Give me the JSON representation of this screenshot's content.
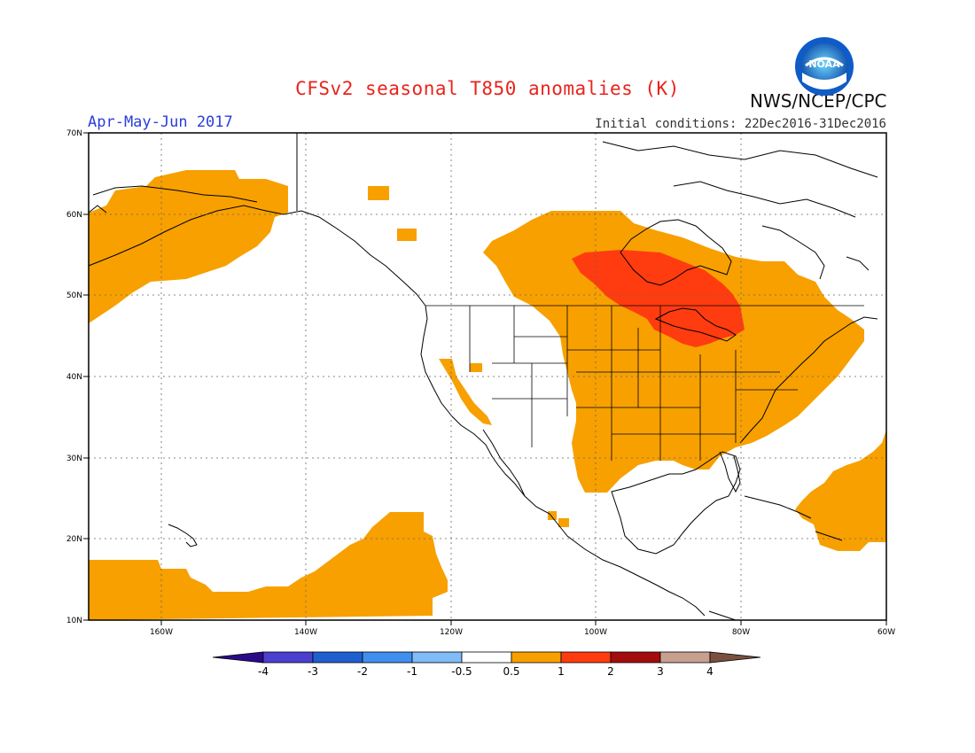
{
  "title": "CFSv2 seasonal T850 anomalies (K)",
  "season": "Apr-May-Jun 2017",
  "initial_conditions": "Initial conditions: 22Dec2016-31Dec2016",
  "agency": "NWS/NCEP/CPC",
  "logo_text": "NOAA",
  "map": {
    "lat_ticks": [
      "10N",
      "20N",
      "30N",
      "40N",
      "50N",
      "60N",
      "70N"
    ],
    "lon_ticks": [
      "160W",
      "140W",
      "120W",
      "100W",
      "80W",
      "60W"
    ],
    "lat_range": [
      10,
      70
    ],
    "lon_range": [
      -170,
      -60
    ],
    "gridlines": true,
    "anomaly_regions": [
      {
        "region": "Alaska / Bering Sea",
        "category": "0.5 to 1"
      },
      {
        "region": "Central and Eastern United States and Canada",
        "category": "0.5 to 1"
      },
      {
        "region": "Great Lakes / Hudson Bay area",
        "category": "1 to 2"
      },
      {
        "region": "Subtropical eastern Pacific",
        "category": "0.5 to 1"
      },
      {
        "region": "Western Atlantic / Caribbean",
        "category": "0.5 to 1"
      }
    ]
  },
  "colorbar": {
    "labels": [
      "-4",
      "-3",
      "-2",
      "-1",
      "-0.5",
      "0.5",
      "1",
      "2",
      "3",
      "4"
    ],
    "colors": [
      "#2b0a8a",
      "#4b3fd0",
      "#1f5fd0",
      "#3f8ff0",
      "#7fbcf8",
      "#ffffff",
      "#f7a000",
      "#ff3c10",
      "#a30d0d",
      "#c8a090",
      "#7a5040"
    ]
  }
}
